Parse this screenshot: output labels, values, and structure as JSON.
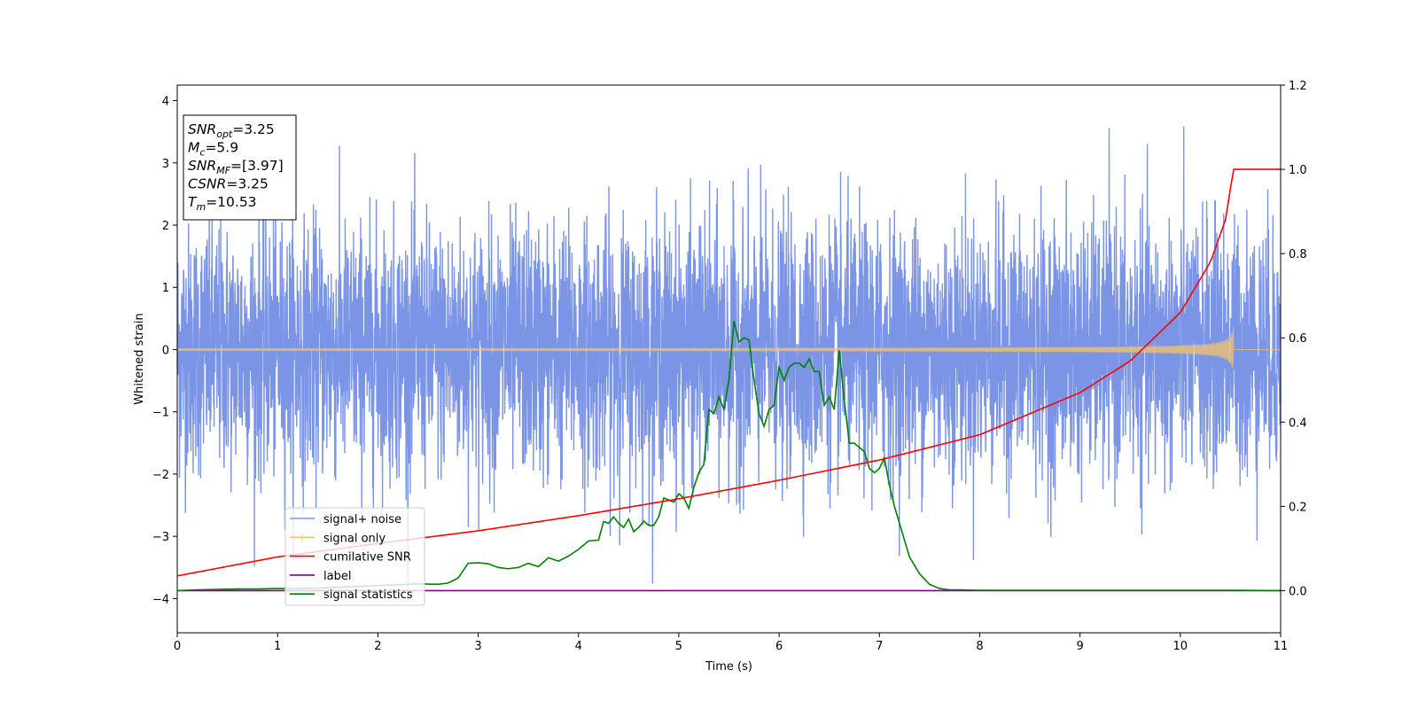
{
  "chart_data": {
    "type": "line",
    "title": "",
    "xlabel": "Time (s)",
    "ylabel": "Whitened strain",
    "ylabel_right": "",
    "xlim": [
      0,
      11
    ],
    "ylim": [
      -4.55,
      4.25
    ],
    "ylim_right": [
      -0.1,
      1.2
    ],
    "grid": false,
    "legend_position": "lower-left",
    "x_ticks": [
      "0",
      "1",
      "2",
      "3",
      "4",
      "5",
      "6",
      "7",
      "8",
      "9",
      "10",
      "11"
    ],
    "x_tick_values": [
      0,
      1,
      2,
      3,
      4,
      5,
      6,
      7,
      8,
      9,
      10,
      11
    ],
    "y_ticks": [
      "4",
      "3",
      "2",
      "1",
      "0",
      "−1",
      "−2",
      "−3",
      "−4"
    ],
    "y_tick_values": [
      4,
      3,
      2,
      1,
      0,
      -1,
      -2,
      -3,
      -4
    ],
    "y_ticks_right": [
      "1.2",
      "1.0",
      "0.8",
      "0.6",
      "0.4",
      "0.2",
      "0.0"
    ],
    "y_tick_values_right": [
      1.2,
      1.0,
      0.8,
      0.6,
      0.4,
      0.2,
      0.0
    ],
    "annotation": {
      "lines": [
        {
          "base": "SNR",
          "sub": "opt",
          "value": "=3.25"
        },
        {
          "base": "M",
          "sub": "c",
          "value": "=5.9"
        },
        {
          "base": "SNR",
          "sub": "MF",
          "value": "=[3.97]"
        },
        {
          "base": "CSNR",
          "sub": "",
          "value": "=3.25"
        },
        {
          "base": "T",
          "sub": "m",
          "value": "=10.53"
        }
      ]
    },
    "series": [
      {
        "name": "signal+ noise",
        "color": "#7b94e6",
        "axis": "left",
        "kind": "noise",
        "amplitude": 1.0
      },
      {
        "name": "signal only",
        "color": "#f5c46a",
        "axis": "left",
        "kind": "chirp",
        "merger_time": 10.53,
        "peak_amplitude": 0.38
      },
      {
        "name": "cumilative SNR",
        "color": "#ff0000",
        "axis": "right",
        "x": [
          0,
          1,
          2,
          3,
          4,
          5,
          6,
          7,
          8,
          9,
          9.5,
          10,
          10.3,
          10.45,
          10.53,
          11
        ],
        "values": [
          0.035,
          0.08,
          0.112,
          0.142,
          0.178,
          0.218,
          0.262,
          0.31,
          0.37,
          0.47,
          0.545,
          0.66,
          0.78,
          0.88,
          1.0,
          1.0
        ]
      },
      {
        "name": "label",
        "color": "#800080",
        "axis": "right",
        "x": [
          0,
          11
        ],
        "values": [
          0.0,
          0.0
        ]
      },
      {
        "name": "signal statistics",
        "color": "#008000",
        "axis": "right",
        "x": [
          0,
          0.2,
          0.4,
          0.6,
          0.8,
          1.0,
          1.2,
          1.4,
          1.6,
          1.8,
          2.0,
          2.2,
          2.4,
          2.6,
          2.7,
          2.8,
          2.9,
          3.0,
          3.1,
          3.2,
          3.3,
          3.4,
          3.5,
          3.6,
          3.7,
          3.8,
          3.9,
          4.0,
          4.1,
          4.2,
          4.25,
          4.3,
          4.35,
          4.4,
          4.45,
          4.5,
          4.55,
          4.6,
          4.65,
          4.7,
          4.75,
          4.8,
          4.85,
          4.9,
          4.95,
          5.0,
          5.05,
          5.1,
          5.15,
          5.2,
          5.25,
          5.3,
          5.35,
          5.4,
          5.45,
          5.5,
          5.55,
          5.6,
          5.65,
          5.7,
          5.75,
          5.8,
          5.85,
          5.9,
          5.95,
          6.0,
          6.05,
          6.1,
          6.15,
          6.2,
          6.25,
          6.3,
          6.35,
          6.4,
          6.45,
          6.5,
          6.55,
          6.6,
          6.65,
          6.7,
          6.75,
          6.8,
          6.85,
          6.9,
          6.95,
          7.0,
          7.05,
          7.1,
          7.15,
          7.2,
          7.25,
          7.3,
          7.4,
          7.5,
          7.6,
          7.7,
          7.8,
          8.0,
          8.5,
          9.0,
          9.5,
          10.0,
          10.5,
          11.0
        ],
        "values": [
          0.0,
          0.002,
          0.003,
          0.004,
          0.004,
          0.005,
          0.005,
          0.006,
          0.008,
          0.01,
          0.012,
          0.014,
          0.016,
          0.015,
          0.018,
          0.03,
          0.065,
          0.066,
          0.064,
          0.055,
          0.052,
          0.055,
          0.065,
          0.057,
          0.078,
          0.07,
          0.082,
          0.098,
          0.118,
          0.12,
          0.164,
          0.16,
          0.175,
          0.16,
          0.15,
          0.17,
          0.14,
          0.15,
          0.165,
          0.155,
          0.155,
          0.175,
          0.22,
          0.215,
          0.21,
          0.23,
          0.22,
          0.195,
          0.245,
          0.28,
          0.3,
          0.43,
          0.42,
          0.46,
          0.43,
          0.5,
          0.64,
          0.59,
          0.6,
          0.595,
          0.5,
          0.42,
          0.39,
          0.43,
          0.44,
          0.53,
          0.5,
          0.53,
          0.54,
          0.54,
          0.53,
          0.55,
          0.52,
          0.52,
          0.44,
          0.46,
          0.43,
          0.57,
          0.45,
          0.35,
          0.35,
          0.34,
          0.33,
          0.29,
          0.28,
          0.29,
          0.315,
          0.25,
          0.2,
          0.16,
          0.12,
          0.08,
          0.04,
          0.015,
          0.005,
          0.002,
          0.002,
          0.001,
          0.001,
          0.001,
          0.001,
          0.001,
          0.001,
          0.0
        ]
      }
    ]
  }
}
